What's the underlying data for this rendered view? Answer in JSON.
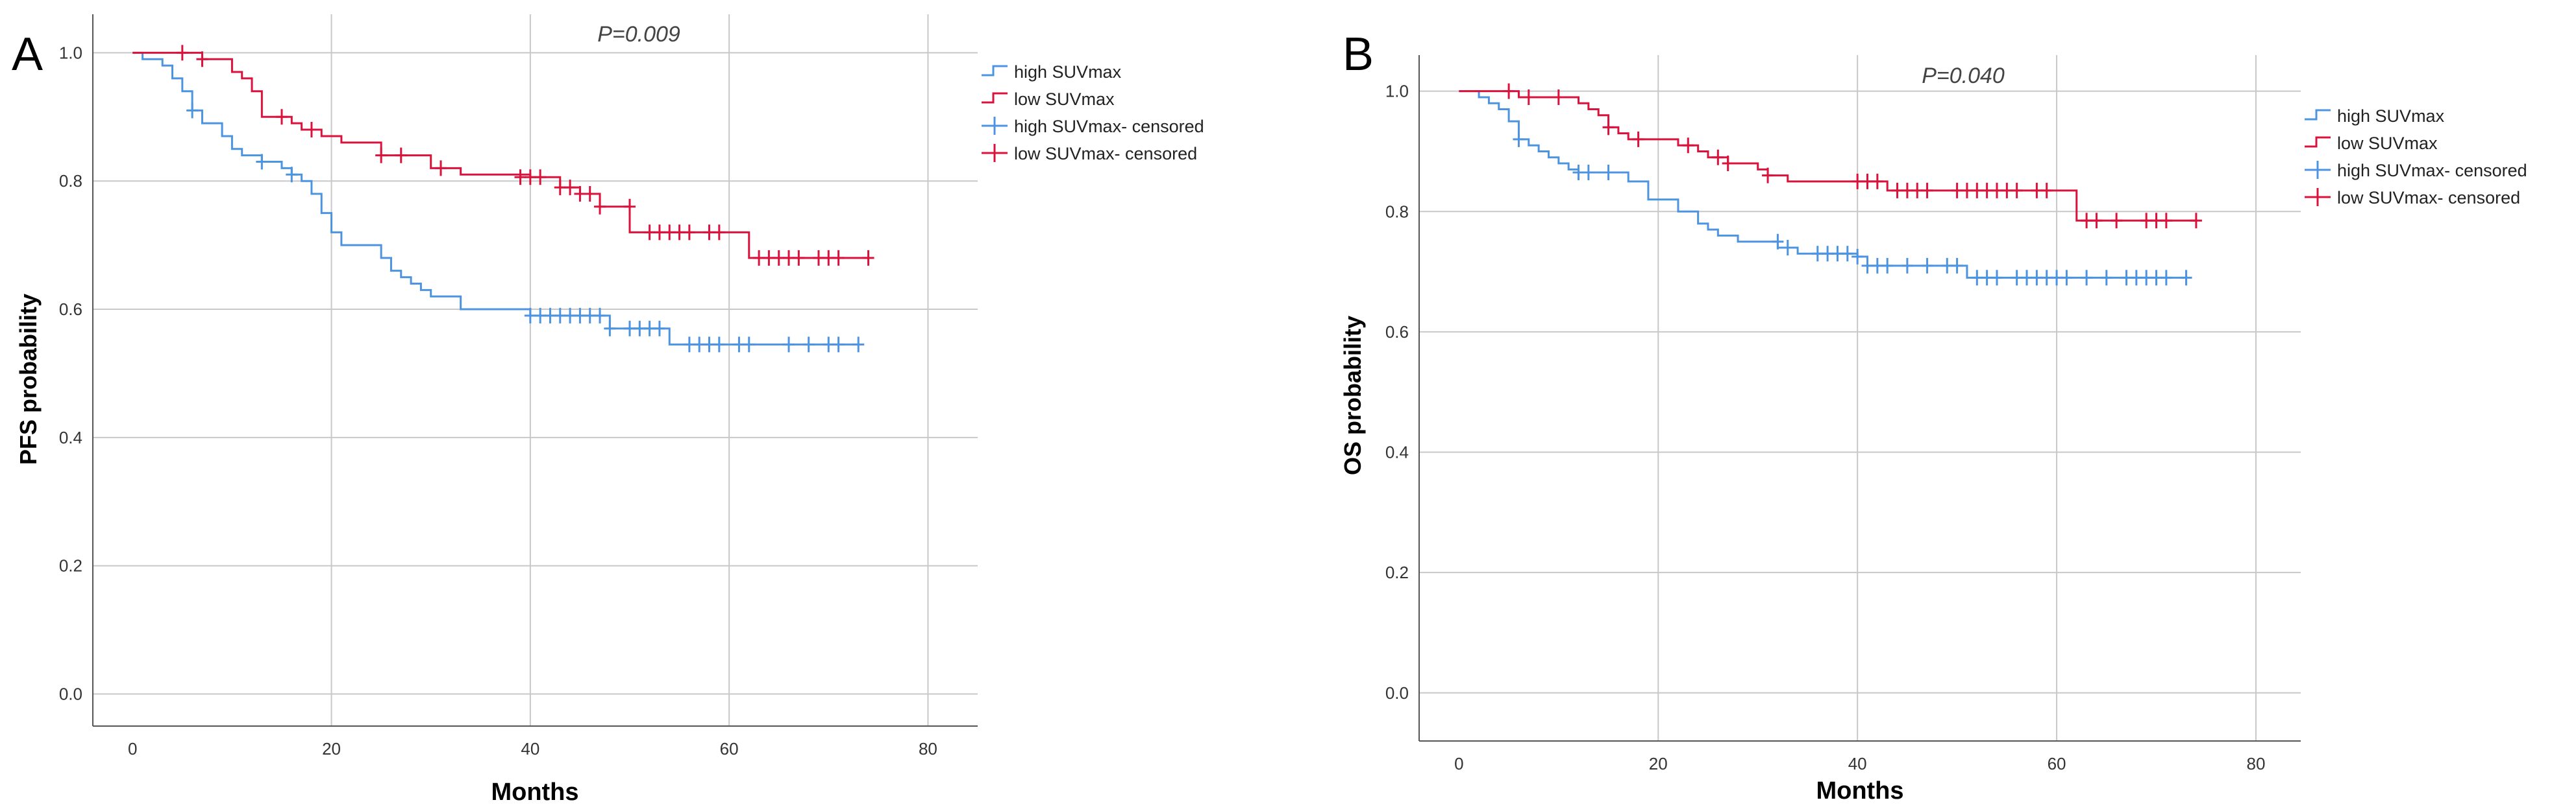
{
  "chart_data": [
    {
      "type": "line",
      "panel_label": "A",
      "annotation": "P=0.009",
      "xlabel": "Months",
      "ylabel": "PFS probability",
      "xlim": [
        -4,
        85
      ],
      "ylim": [
        -0.05,
        1.06
      ],
      "xticks": [
        0,
        20,
        40,
        60,
        80
      ],
      "xtick_labels": [
        "0",
        "20",
        "40",
        "60",
        "80"
      ],
      "yticks": [
        0.0,
        0.2,
        0.4,
        0.6,
        0.8,
        1.0
      ],
      "ytick_labels": [
        "0.0",
        "0.2",
        "0.4",
        "0.6",
        "0.8",
        "1.0"
      ],
      "grid": true,
      "legend": [
        {
          "label": "high SUVmax",
          "kind": "step",
          "color": "#4d94e0"
        },
        {
          "label": "low SUVmax",
          "kind": "step",
          "color": "#d9133b"
        },
        {
          "label": "high SUVmax- censored",
          "kind": "censor",
          "color": "#4d94e0"
        },
        {
          "label": "low SUVmax- censored",
          "kind": "censor",
          "color": "#d9133b"
        }
      ],
      "series": [
        {
          "name": "high SUVmax",
          "color": "#4d94e0",
          "steps": [
            [
              0,
              1.0
            ],
            [
              1,
              0.99
            ],
            [
              3,
              0.98
            ],
            [
              4,
              0.96
            ],
            [
              5,
              0.94
            ],
            [
              6,
              0.91
            ],
            [
              7,
              0.89
            ],
            [
              9,
              0.87
            ],
            [
              10,
              0.85
            ],
            [
              11,
              0.84
            ],
            [
              13,
              0.83
            ],
            [
              15,
              0.82
            ],
            [
              16,
              0.81
            ],
            [
              17,
              0.8
            ],
            [
              18,
              0.78
            ],
            [
              19,
              0.75
            ],
            [
              20,
              0.72
            ],
            [
              21,
              0.7
            ],
            [
              25,
              0.68
            ],
            [
              26,
              0.66
            ],
            [
              27,
              0.65
            ],
            [
              28,
              0.64
            ],
            [
              29,
              0.63
            ],
            [
              30,
              0.62
            ],
            [
              33,
              0.6
            ],
            [
              40,
              0.59
            ],
            [
              48,
              0.57
            ],
            [
              54,
              0.545
            ],
            [
              73,
              0.545
            ]
          ],
          "censored": [
            [
              6,
              0.91
            ],
            [
              13,
              0.83
            ],
            [
              16,
              0.81
            ],
            [
              40,
              0.59
            ],
            [
              41,
              0.59
            ],
            [
              42,
              0.59
            ],
            [
              43,
              0.59
            ],
            [
              44,
              0.59
            ],
            [
              45,
              0.59
            ],
            [
              46,
              0.59
            ],
            [
              47,
              0.59
            ],
            [
              48,
              0.57
            ],
            [
              50,
              0.57
            ],
            [
              51,
              0.57
            ],
            [
              52,
              0.57
            ],
            [
              53,
              0.57
            ],
            [
              56,
              0.545
            ],
            [
              57,
              0.545
            ],
            [
              58,
              0.545
            ],
            [
              59,
              0.545
            ],
            [
              61,
              0.545
            ],
            [
              62,
              0.545
            ],
            [
              66,
              0.545
            ],
            [
              68,
              0.545
            ],
            [
              70,
              0.545
            ],
            [
              71,
              0.545
            ],
            [
              73,
              0.545
            ]
          ]
        },
        {
          "name": "low SUVmax",
          "color": "#d9133b",
          "steps": [
            [
              0,
              1.0
            ],
            [
              5,
              1.0
            ],
            [
              7,
              0.99
            ],
            [
              10,
              0.97
            ],
            [
              11,
              0.96
            ],
            [
              12,
              0.94
            ],
            [
              13,
              0.9
            ],
            [
              16,
              0.89
            ],
            [
              17,
              0.88
            ],
            [
              19,
              0.87
            ],
            [
              21,
              0.86
            ],
            [
              25,
              0.84
            ],
            [
              30,
              0.82
            ],
            [
              33,
              0.81
            ],
            [
              40,
              0.806
            ],
            [
              43,
              0.79
            ],
            [
              45,
              0.78
            ],
            [
              47,
              0.76
            ],
            [
              50,
              0.72
            ],
            [
              62,
              0.68
            ],
            [
              74,
              0.68
            ]
          ],
          "censored": [
            [
              5,
              1.0
            ],
            [
              7,
              0.99
            ],
            [
              15,
              0.9
            ],
            [
              18,
              0.88
            ],
            [
              25,
              0.84
            ],
            [
              27,
              0.84
            ],
            [
              31,
              0.82
            ],
            [
              39,
              0.806
            ],
            [
              40,
              0.806
            ],
            [
              41,
              0.806
            ],
            [
              43,
              0.79
            ],
            [
              44,
              0.79
            ],
            [
              45,
              0.78
            ],
            [
              46,
              0.78
            ],
            [
              47,
              0.76
            ],
            [
              50,
              0.76
            ],
            [
              52,
              0.72
            ],
            [
              53,
              0.72
            ],
            [
              54,
              0.72
            ],
            [
              55,
              0.72
            ],
            [
              56,
              0.72
            ],
            [
              58,
              0.72
            ],
            [
              59,
              0.72
            ],
            [
              63,
              0.68
            ],
            [
              64,
              0.68
            ],
            [
              65,
              0.68
            ],
            [
              66,
              0.68
            ],
            [
              67,
              0.68
            ],
            [
              69,
              0.68
            ],
            [
              70,
              0.68
            ],
            [
              71,
              0.68
            ],
            [
              74,
              0.68
            ]
          ]
        }
      ]
    },
    {
      "type": "line",
      "panel_label": "B",
      "annotation": "P=0.040",
      "xlabel": "Months",
      "ylabel": "OS probability",
      "xlim": [
        -4,
        84.5
      ],
      "ylim": [
        -0.08,
        1.06
      ],
      "xticks": [
        0,
        20,
        40,
        60,
        80
      ],
      "xtick_labels": [
        "0",
        "20",
        "40",
        "60",
        "80"
      ],
      "yticks": [
        0.0,
        0.2,
        0.4,
        0.6,
        0.8,
        1.0
      ],
      "ytick_labels": [
        "0.0",
        "0.2",
        "0.4",
        "0.6",
        "0.8",
        "1.0"
      ],
      "grid": true,
      "legend": [
        {
          "label": "high SUVmax",
          "kind": "step",
          "color": "#4d94e0"
        },
        {
          "label": "low SUVmax",
          "kind": "step",
          "color": "#d9133b"
        },
        {
          "label": "high SUVmax- censored",
          "kind": "censor",
          "color": "#4d94e0"
        },
        {
          "label": "low SUVmax- censored",
          "kind": "censor",
          "color": "#d9133b"
        }
      ],
      "series": [
        {
          "name": "high SUVmax",
          "color": "#4d94e0",
          "steps": [
            [
              0,
              1.0
            ],
            [
              2,
              0.99
            ],
            [
              3,
              0.98
            ],
            [
              4,
              0.97
            ],
            [
              5,
              0.95
            ],
            [
              6,
              0.92
            ],
            [
              7,
              0.91
            ],
            [
              8,
              0.9
            ],
            [
              9,
              0.89
            ],
            [
              10,
              0.88
            ],
            [
              11,
              0.87
            ],
            [
              12,
              0.865
            ],
            [
              17,
              0.85
            ],
            [
              19,
              0.82
            ],
            [
              22,
              0.8
            ],
            [
              24,
              0.78
            ],
            [
              25,
              0.77
            ],
            [
              26,
              0.76
            ],
            [
              28,
              0.75
            ],
            [
              32,
              0.74
            ],
            [
              34,
              0.73
            ],
            [
              40,
              0.725
            ],
            [
              41,
              0.71
            ],
            [
              51,
              0.69
            ],
            [
              73,
              0.69
            ]
          ],
          "censored": [
            [
              6,
              0.92
            ],
            [
              12,
              0.865
            ],
            [
              13,
              0.865
            ],
            [
              15,
              0.865
            ],
            [
              32,
              0.75
            ],
            [
              33,
              0.74
            ],
            [
              36,
              0.73
            ],
            [
              37,
              0.73
            ],
            [
              38,
              0.73
            ],
            [
              39,
              0.73
            ],
            [
              40,
              0.725
            ],
            [
              41,
              0.71
            ],
            [
              42,
              0.71
            ],
            [
              43,
              0.71
            ],
            [
              45,
              0.71
            ],
            [
              47,
              0.71
            ],
            [
              49,
              0.71
            ],
            [
              50,
              0.71
            ],
            [
              52,
              0.69
            ],
            [
              53,
              0.69
            ],
            [
              54,
              0.69
            ],
            [
              56,
              0.69
            ],
            [
              57,
              0.69
            ],
            [
              58,
              0.69
            ],
            [
              59,
              0.69
            ],
            [
              60,
              0.69
            ],
            [
              61,
              0.69
            ],
            [
              63,
              0.69
            ],
            [
              65,
              0.69
            ],
            [
              67,
              0.69
            ],
            [
              68,
              0.69
            ],
            [
              69,
              0.69
            ],
            [
              70,
              0.69
            ],
            [
              71,
              0.69
            ],
            [
              73,
              0.69
            ]
          ]
        },
        {
          "name": "low SUVmax",
          "color": "#d9133b",
          "steps": [
            [
              0,
              1.0
            ],
            [
              6,
              0.99
            ],
            [
              12,
              0.98
            ],
            [
              13,
              0.97
            ],
            [
              14,
              0.96
            ],
            [
              15,
              0.94
            ],
            [
              16,
              0.93
            ],
            [
              17,
              0.92
            ],
            [
              22,
              0.91
            ],
            [
              24,
              0.9
            ],
            [
              25,
              0.89
            ],
            [
              27,
              0.88
            ],
            [
              30,
              0.87
            ],
            [
              31,
              0.86
            ],
            [
              33,
              0.85
            ],
            [
              43,
              0.835
            ],
            [
              62,
              0.785
            ],
            [
              74,
              0.785
            ]
          ],
          "censored": [
            [
              5,
              1.0
            ],
            [
              7,
              0.99
            ],
            [
              10,
              0.99
            ],
            [
              15,
              0.94
            ],
            [
              18,
              0.92
            ],
            [
              23,
              0.91
            ],
            [
              26,
              0.89
            ],
            [
              27,
              0.88
            ],
            [
              31,
              0.86
            ],
            [
              40,
              0.85
            ],
            [
              41,
              0.85
            ],
            [
              42,
              0.85
            ],
            [
              44,
              0.835
            ],
            [
              45,
              0.835
            ],
            [
              46,
              0.835
            ],
            [
              47,
              0.835
            ],
            [
              50,
              0.835
            ],
            [
              51,
              0.835
            ],
            [
              52,
              0.835
            ],
            [
              53,
              0.835
            ],
            [
              54,
              0.835
            ],
            [
              55,
              0.835
            ],
            [
              56,
              0.835
            ],
            [
              58,
              0.835
            ],
            [
              59,
              0.835
            ],
            [
              63,
              0.785
            ],
            [
              64,
              0.785
            ],
            [
              66,
              0.785
            ],
            [
              69,
              0.785
            ],
            [
              70,
              0.785
            ],
            [
              71,
              0.785
            ],
            [
              74,
              0.785
            ]
          ]
        }
      ]
    }
  ]
}
